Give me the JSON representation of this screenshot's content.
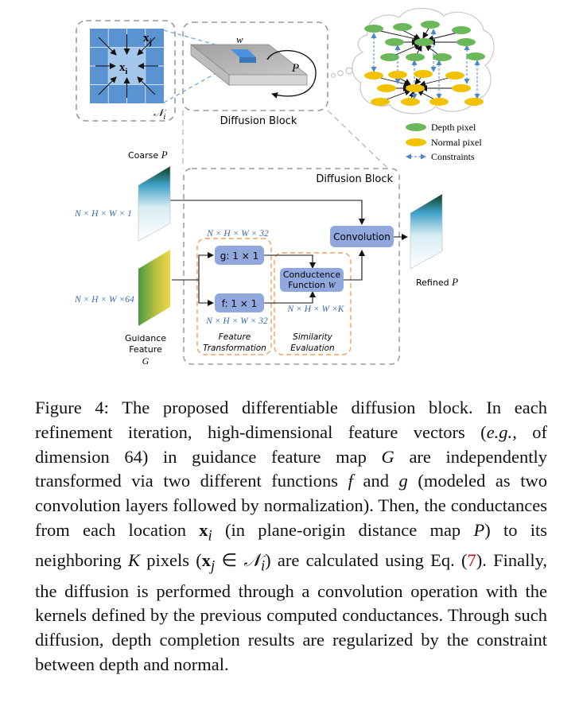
{
  "figure": {
    "top": {
      "kernel_xj": "x",
      "kernel_xj_sub": "j",
      "kernel_xi": "x",
      "kernel_xi_sub": "i",
      "kernel_N": "𝒩",
      "kernel_N_sub": "i",
      "diffusion_w": "w",
      "diffusion_P": "P",
      "diffusion_block_label": "Diffusion Block"
    },
    "legend": {
      "depth": "Depth pixel",
      "normal": "Normal pixel",
      "constraints": "Constraints"
    },
    "bottom": {
      "coarse_label": "Coarse",
      "coarse_P": "P",
      "block_title": "Diffusion Block",
      "dim_coarse": "N × H × W × 1",
      "dim_guidance": "N × H × W ×64",
      "dim_g": "N × H × W × 32",
      "dim_f": "N × H × W × 32",
      "dim_k": "N × H × W ×K",
      "g_box": "g: 1 × 1",
      "f_box": "f: 1 × 1",
      "conductance_line1": "Conductence",
      "conductance_line2": "Function",
      "conductance_w": "W",
      "convolution": "Convolution",
      "refined_label": "Refined",
      "refined_P": "P",
      "guidance_line1": "Guidance",
      "guidance_line2": "Feature",
      "guidance_G": "G",
      "feature_transformation_1": "Feature",
      "feature_transformation_2": "Transformation",
      "similarity_1": "Similarity",
      "similarity_2": "Evaluation"
    }
  },
  "caption": {
    "figure_label": "Figure 4:",
    "s1": "The proposed differentiable diffusion block.",
    "s2a": "In each refinement iteration, high-dimensional feature vectors (",
    "eg": "e.g.",
    "s2b": ", of dimension 64) in guidance feature map",
    "G": "G",
    "s2c": "are independently transformed via two different functions",
    "f": "f",
    "and": "and",
    "g": "g",
    "s2d": "(modeled as two convolution layers followed by normalization). Then, the conductances from each location",
    "xi_base": "x",
    "xi_sub": "i",
    "s3a": "(in plane-origin distance map",
    "P": "P",
    "s3b": ") to its neighboring",
    "K": "K",
    "s3c": "pixels (",
    "xj_base": "x",
    "xj_sub": "j",
    "in": " ∈ ",
    "Ni_base": "𝒩",
    "Ni_sub": "i",
    "s3d": ") are calculated using Eq. (",
    "eq": "7",
    "s3e": "). Finally, the diffusion is performed through a convolution operation with the kernels defined by the previous computed conductances. Through such diffusion, depth completion results are regularized by the constraint between depth and normal."
  }
}
